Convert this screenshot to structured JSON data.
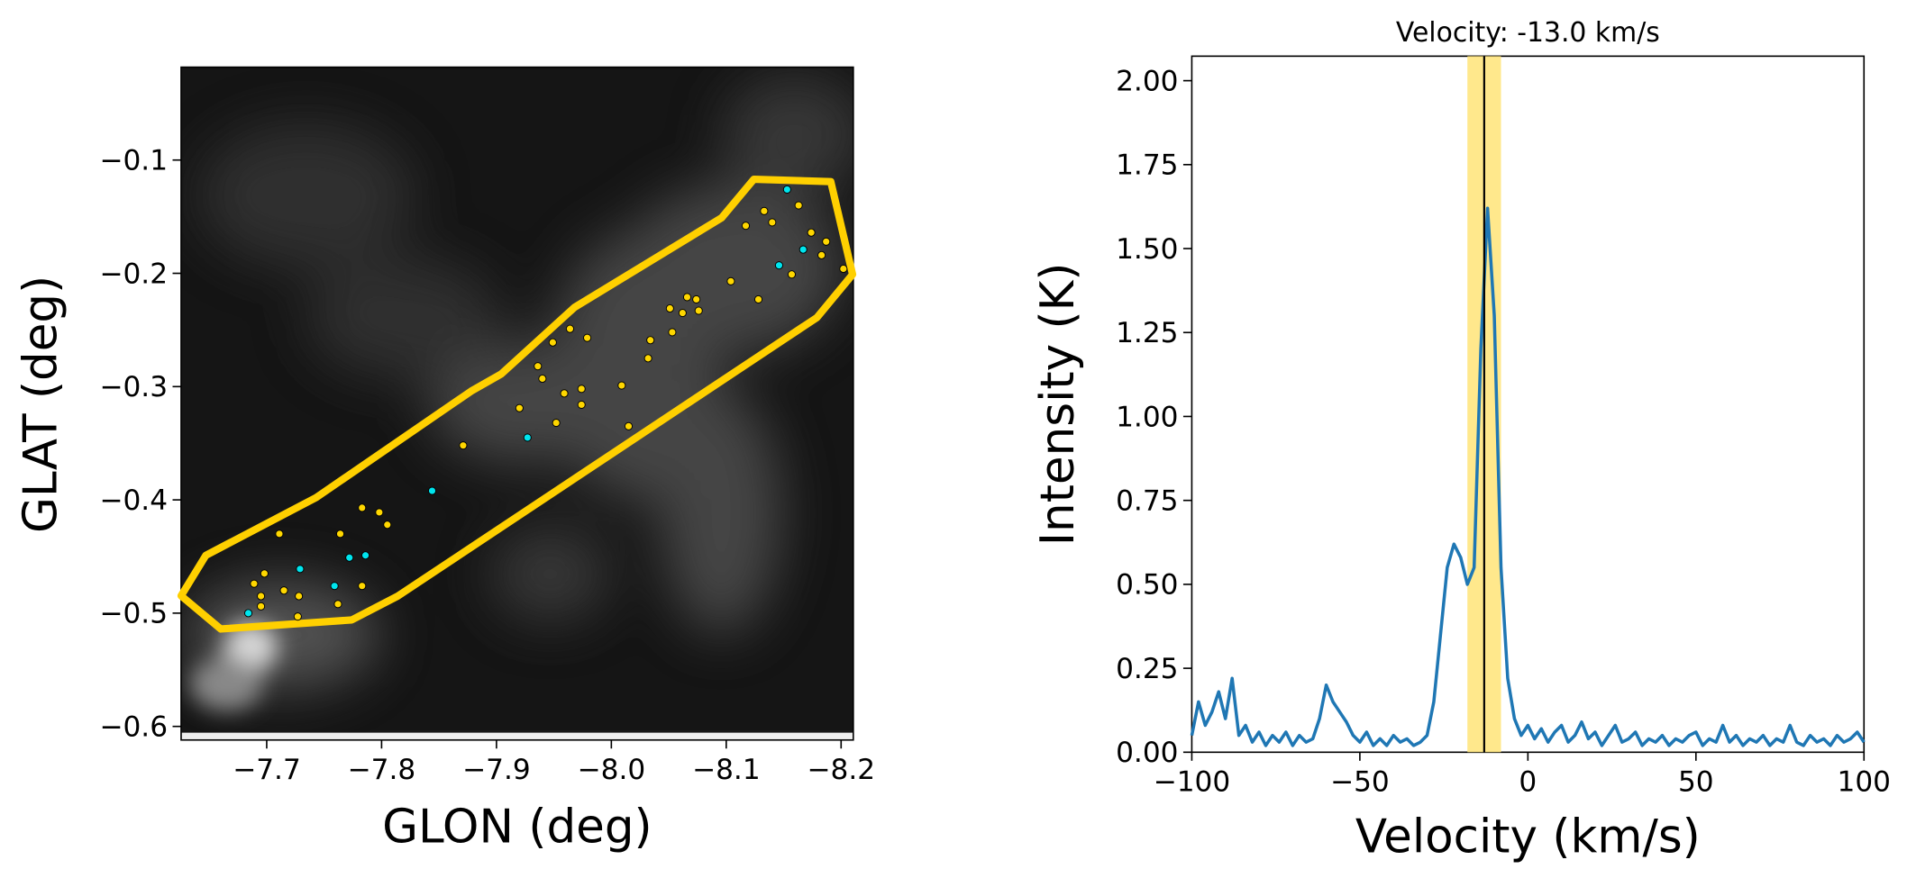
{
  "chart_data": [
    {
      "type": "scatter",
      "x_label": "GLON (deg)",
      "y_label": "GLAT (deg)",
      "xlim": [
        -7.6255,
        -8.2106
      ],
      "ylim": [
        -0.612,
        -0.018
      ],
      "xticks": [
        {
          "value": -7.7,
          "label": "−7.7"
        },
        {
          "value": -7.8,
          "label": "−7.8"
        },
        {
          "value": -7.9,
          "label": "−7.9"
        },
        {
          "value": -8.0,
          "label": "−8.0"
        },
        {
          "value": -8.1,
          "label": "−8.1"
        },
        {
          "value": -8.2,
          "label": "−8.2"
        }
      ],
      "yticks": [
        {
          "value": -0.1,
          "label": "−0.1"
        },
        {
          "value": -0.2,
          "label": "−0.2"
        },
        {
          "value": -0.3,
          "label": "−0.3"
        },
        {
          "value": -0.4,
          "label": "−0.4"
        },
        {
          "value": -0.5,
          "label": "−0.5"
        },
        {
          "value": -0.6,
          "label": "−0.6"
        }
      ],
      "region": {
        "color": "#ffd000",
        "x": [
          -7.6255,
          -7.647,
          -7.743,
          -7.878,
          -7.904,
          -7.968,
          -8.096,
          -8.124,
          -8.191,
          -8.21,
          -8.179,
          -7.814,
          -7.774,
          -7.66
        ],
        "y": [
          -0.4847,
          -0.449,
          -0.398,
          -0.304,
          -0.289,
          -0.23,
          -0.151,
          -0.117,
          -0.119,
          -0.201,
          -0.239,
          -0.485,
          -0.506,
          -0.514
        ]
      },
      "series": [
        {
          "color": "#ffd700",
          "x": [
            -7.711,
            -7.698,
            -7.689,
            -7.695,
            -7.695,
            -7.715,
            -7.728,
            -7.727,
            -7.764,
            -7.762,
            -7.783,
            -7.798,
            -7.805,
            -7.783,
            -7.871,
            -7.92,
            -7.936,
            -7.94,
            -7.949,
            -7.952,
            -7.959,
            -7.964,
            -7.974,
            -7.974,
            -7.979,
            -8.009,
            -8.015,
            -8.032,
            -8.034,
            -8.051,
            -8.053,
            -8.062,
            -8.066,
            -8.074,
            -8.076,
            -8.104,
            -8.117,
            -8.128,
            -8.133,
            -8.14,
            -8.157,
            -8.163,
            -8.174,
            -8.183,
            -8.202,
            -8.187
          ],
          "values": [
            -0.43,
            -0.465,
            -0.474,
            -0.485,
            -0.494,
            -0.48,
            -0.485,
            -0.503,
            -0.43,
            -0.492,
            -0.407,
            -0.411,
            -0.422,
            -0.476,
            -0.352,
            -0.319,
            -0.282,
            -0.293,
            -0.261,
            -0.332,
            -0.306,
            -0.249,
            -0.316,
            -0.302,
            -0.257,
            -0.299,
            -0.335,
            -0.275,
            -0.259,
            -0.231,
            -0.252,
            -0.235,
            -0.221,
            -0.223,
            -0.233,
            -0.207,
            -0.158,
            -0.223,
            -0.145,
            -0.155,
            -0.201,
            -0.14,
            -0.164,
            -0.184,
            -0.196,
            -0.172
          ]
        },
        {
          "color": "#00e5ee",
          "x": [
            -7.684,
            -7.729,
            -7.759,
            -7.772,
            -7.786,
            -7.844,
            -7.927,
            -8.146,
            -8.167,
            -8.153
          ],
          "values": [
            -0.5,
            -0.461,
            -0.476,
            -0.451,
            -0.449,
            -0.392,
            -0.345,
            -0.193,
            -0.179,
            -0.126
          ]
        }
      ]
    },
    {
      "type": "line",
      "title": "Velocity: -13.0 km/s",
      "x_label": "Velocity (km/s)",
      "y_label": "Intensity (K)",
      "xlim": [
        -100,
        100
      ],
      "ylim": [
        0,
        2.073
      ],
      "xticks": [
        {
          "value": -100,
          "label": "−100"
        },
        {
          "value": -50,
          "label": "−50"
        },
        0,
        50,
        100
      ],
      "yticks": [
        {
          "value": 0,
          "label": "0.00"
        },
        {
          "value": 0.25,
          "label": "0.25"
        },
        {
          "value": 0.5,
          "label": "0.50"
        },
        {
          "value": 0.75,
          "label": "0.75"
        },
        {
          "value": 1,
          "label": "1.00"
        },
        {
          "value": 1.25,
          "label": "1.25"
        },
        {
          "value": 1.5,
          "label": "1.50"
        },
        {
          "value": 1.75,
          "label": "1.75"
        },
        {
          "value": 2,
          "label": "2.00"
        }
      ],
      "band": [
        -18,
        -8
      ],
      "band_color": "#ffe680",
      "marker_x": -13,
      "marker_color": "#000000",
      "series": [
        {
          "color": "#1f77b4",
          "x": [
            -100,
            -98,
            -96,
            -94,
            -92,
            -90,
            -88,
            -86,
            -84,
            -82,
            -80,
            -78,
            -76,
            -74,
            -72,
            -70,
            -68,
            -66,
            -64,
            -62,
            -60,
            -58,
            -56,
            -54,
            -52,
            -50,
            -48,
            -46,
            -44,
            -42,
            -40,
            -38,
            -36,
            -34,
            -32,
            -30,
            -28,
            -26,
            -24,
            -22,
            -20,
            -18,
            -16,
            -14,
            -12,
            -10,
            -8,
            -6,
            -4,
            -2,
            0,
            2,
            4,
            6,
            8,
            10,
            12,
            14,
            16,
            18,
            20,
            22,
            24,
            26,
            28,
            30,
            32,
            34,
            36,
            38,
            40,
            42,
            44,
            46,
            48,
            50,
            52,
            54,
            56,
            58,
            60,
            62,
            64,
            66,
            68,
            70,
            72,
            74,
            76,
            78,
            80,
            82,
            84,
            86,
            88,
            90,
            92,
            94,
            96,
            98,
            100
          ],
          "values": [
            0.05,
            0.15,
            0.08,
            0.12,
            0.18,
            0.1,
            0.22,
            0.05,
            0.08,
            0.03,
            0.06,
            0.02,
            0.05,
            0.03,
            0.06,
            0.02,
            0.05,
            0.03,
            0.04,
            0.1,
            0.2,
            0.15,
            0.12,
            0.09,
            0.05,
            0.03,
            0.06,
            0.02,
            0.04,
            0.02,
            0.05,
            0.03,
            0.04,
            0.02,
            0.03,
            0.05,
            0.15,
            0.35,
            0.55,
            0.62,
            0.58,
            0.5,
            0.55,
            1.2,
            1.62,
            1.3,
            0.55,
            0.22,
            0.1,
            0.05,
            0.08,
            0.04,
            0.07,
            0.03,
            0.06,
            0.08,
            0.03,
            0.05,
            0.09,
            0.04,
            0.06,
            0.02,
            0.05,
            0.08,
            0.03,
            0.04,
            0.06,
            0.02,
            0.04,
            0.03,
            0.05,
            0.02,
            0.04,
            0.03,
            0.05,
            0.06,
            0.02,
            0.04,
            0.03,
            0.08,
            0.03,
            0.05,
            0.02,
            0.04,
            0.03,
            0.05,
            0.02,
            0.04,
            0.03,
            0.08,
            0.03,
            0.02,
            0.05,
            0.03,
            0.04,
            0.02,
            0.05,
            0.03,
            0.04,
            0.06,
            0.03
          ]
        }
      ]
    }
  ]
}
